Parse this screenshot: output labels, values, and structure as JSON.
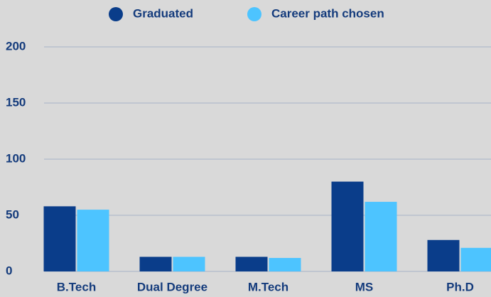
{
  "chart_data": {
    "type": "bar",
    "categories": [
      "B.Tech",
      "Dual Degree",
      "M.Tech",
      "MS",
      "Ph.D"
    ],
    "series": [
      {
        "name": "Graduated",
        "color": "#0a3d8a",
        "values": [
          58,
          13,
          13,
          80,
          28
        ]
      },
      {
        "name": "Career path chosen",
        "color": "#4dc4ff",
        "values": [
          55,
          13,
          12,
          62,
          21
        ]
      }
    ],
    "ylim": [
      0,
      200
    ],
    "yticks": [
      0,
      50,
      100,
      150,
      200
    ],
    "grid": true,
    "legend": "top"
  }
}
